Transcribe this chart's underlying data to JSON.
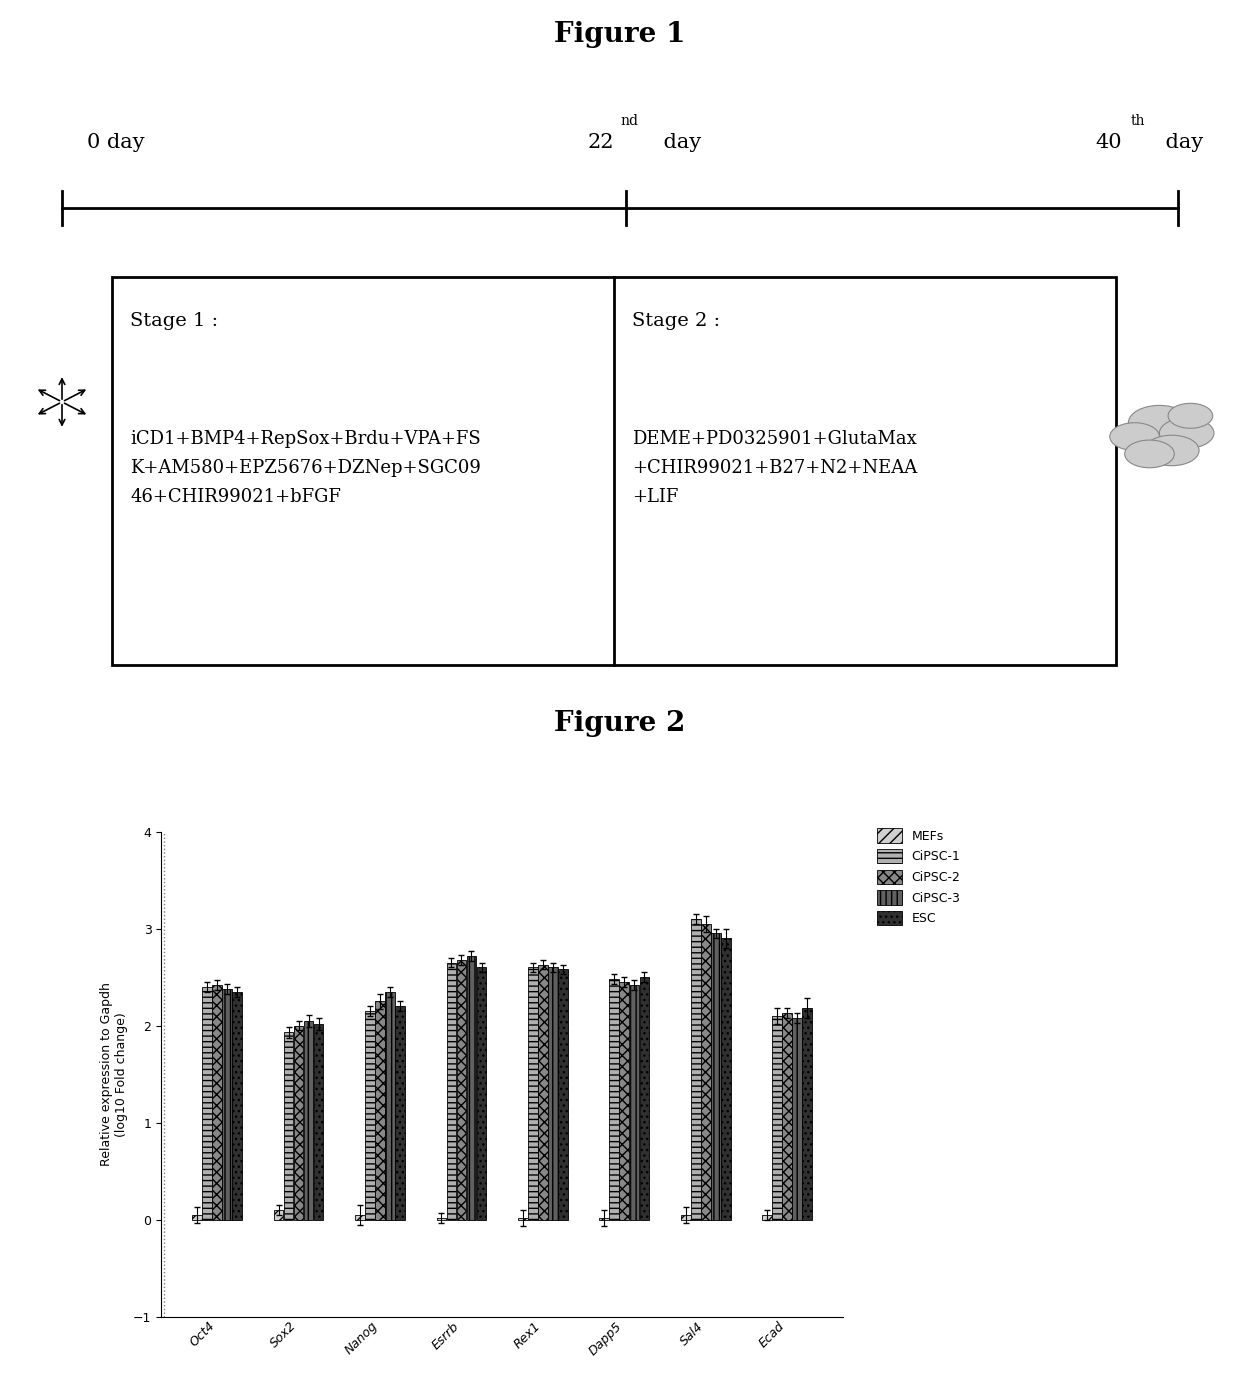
{
  "fig1_title": "Figure 1",
  "fig2_title": "Figure 2",
  "stage1_header": "Stage 1 :",
  "stage1_text": "iCD1+BMP4+RepSox+Brdu+VPA+FS\nK+AM580+EPZ5676+DZNep+SGC09\n46+CHIR99021+bFGF",
  "stage2_header": "Stage 2 :",
  "stage2_text": "DEME+PD0325901+GlutaMax\n+CHIR99021+B27+N2+NEAA\n+LIF",
  "bar_categories": [
    "Oct4",
    "Sox2",
    "Nanog",
    "Esrrb",
    "Rex1",
    "Dapp5",
    "Sal4",
    "Ecad"
  ],
  "legend_labels": [
    "MEFs",
    "CiPSC-1",
    "CiPSC-2",
    "CiPSC-3",
    "ESC"
  ],
  "ylabel": "Relative expression to Gapdh\n(log10 Fold change)",
  "ylim": [
    -1,
    4
  ],
  "yticks": [
    -1,
    0,
    1,
    2,
    3,
    4
  ],
  "mefs_values": [
    0.05,
    0.1,
    0.05,
    0.02,
    0.02,
    0.02,
    0.05,
    0.05
  ],
  "cipsc1_values": [
    2.4,
    1.93,
    2.15,
    2.65,
    2.6,
    2.48,
    3.1,
    2.1
  ],
  "cipsc2_values": [
    2.42,
    2.0,
    2.25,
    2.68,
    2.63,
    2.45,
    3.05,
    2.13
  ],
  "cipsc3_values": [
    2.38,
    2.05,
    2.35,
    2.72,
    2.6,
    2.42,
    2.95,
    2.08
  ],
  "esc_values": [
    2.35,
    2.02,
    2.2,
    2.6,
    2.58,
    2.5,
    2.9,
    2.18
  ],
  "mefs_err": [
    0.08,
    0.05,
    0.1,
    0.05,
    0.08,
    0.08,
    0.08,
    0.05
  ],
  "cipsc1_err": [
    0.05,
    0.06,
    0.05,
    0.05,
    0.05,
    0.05,
    0.05,
    0.08
  ],
  "cipsc2_err": [
    0.05,
    0.05,
    0.08,
    0.05,
    0.05,
    0.05,
    0.08,
    0.05
  ],
  "cipsc3_err": [
    0.05,
    0.06,
    0.05,
    0.05,
    0.05,
    0.05,
    0.05,
    0.05
  ],
  "esc_err": [
    0.05,
    0.06,
    0.05,
    0.05,
    0.05,
    0.05,
    0.1,
    0.1
  ],
  "background_color": "#ffffff"
}
